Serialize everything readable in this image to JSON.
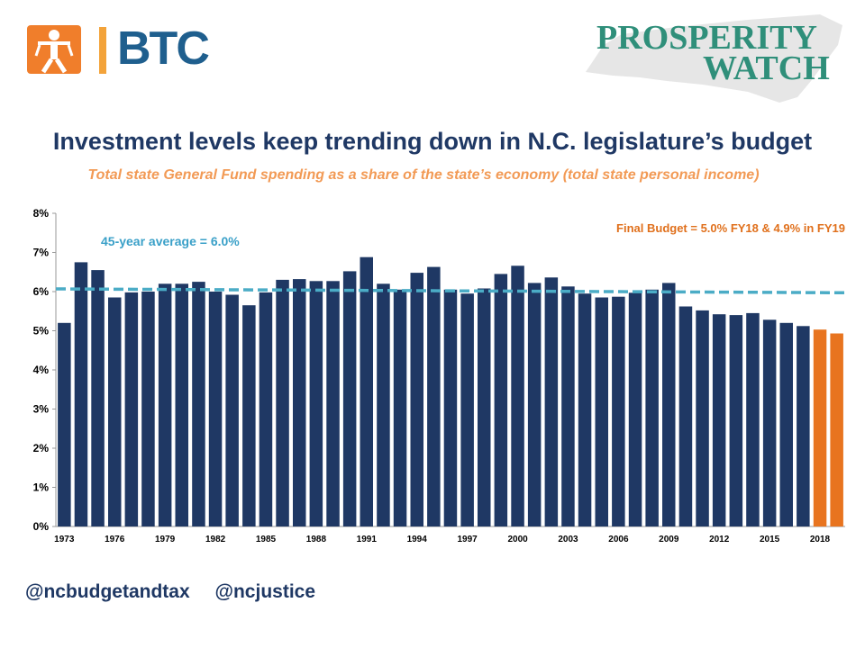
{
  "logos": {
    "left_word": "BTC",
    "right_line1": "PROSPERITY",
    "right_line2": "WATCH"
  },
  "title": "Investment levels keep trending down in N.C. legislature’s budget",
  "subtitle": "Total state General Fund spending as a share of the state’s economy (total state personal income)",
  "footer": {
    "handle1": "@ncbudgetandtax",
    "handle2": "@ncjustice"
  },
  "colors": {
    "bar": "#1f3864",
    "bar_final": "#e8741f",
    "average_line": "#4bacc6",
    "title": "#1f3864",
    "subtitle": "#f29a55"
  },
  "chart_data": {
    "type": "bar",
    "categories": [
      "1973",
      "1974",
      "1975",
      "1976",
      "1977",
      "1978",
      "1979",
      "1980",
      "1981",
      "1982",
      "1983",
      "1984",
      "1985",
      "1986",
      "1987",
      "1988",
      "1989",
      "1990",
      "1991",
      "1992",
      "1993",
      "1994",
      "1995",
      "1996",
      "1997",
      "1998",
      "1999",
      "2000",
      "2001",
      "2002",
      "2003",
      "2004",
      "2005",
      "2006",
      "2007",
      "2008",
      "2009",
      "2010",
      "2011",
      "2012",
      "2013",
      "2014",
      "2015",
      "2016",
      "2017",
      "2018",
      "2019"
    ],
    "x_tick_labels": [
      "1973",
      "1976",
      "1979",
      "1982",
      "1985",
      "1988",
      "1991",
      "1994",
      "1997",
      "2000",
      "2003",
      "2006",
      "2009",
      "2012",
      "2015",
      "2018"
    ],
    "values": [
      5.2,
      6.75,
      6.55,
      5.85,
      5.98,
      6.0,
      6.2,
      6.2,
      6.25,
      6.0,
      5.92,
      5.65,
      5.98,
      6.3,
      6.32,
      6.27,
      6.27,
      6.52,
      6.88,
      6.2,
      6.05,
      6.48,
      6.63,
      6.05,
      5.95,
      6.08,
      6.45,
      6.66,
      6.22,
      6.36,
      6.13,
      5.95,
      5.85,
      5.87,
      5.97,
      6.05,
      6.22,
      5.62,
      5.52,
      5.42,
      5.4,
      5.45,
      5.28,
      5.2,
      5.12,
      5.03,
      4.93
    ],
    "highlight_last": 2,
    "ylim": [
      0,
      8
    ],
    "y_ticks": [
      "0%",
      "1%",
      "2%",
      "3%",
      "4%",
      "5%",
      "6%",
      "7%",
      "8%"
    ],
    "average": 6.0,
    "average_line": {
      "start": 6.07,
      "end": 5.97
    },
    "annotations": {
      "average_label": "45-year average = 6.0%",
      "final_label": "Final Budget =  5.0% FY18 & 4.9% in FY19"
    },
    "grid": false,
    "xlabel": "",
    "ylabel": ""
  }
}
